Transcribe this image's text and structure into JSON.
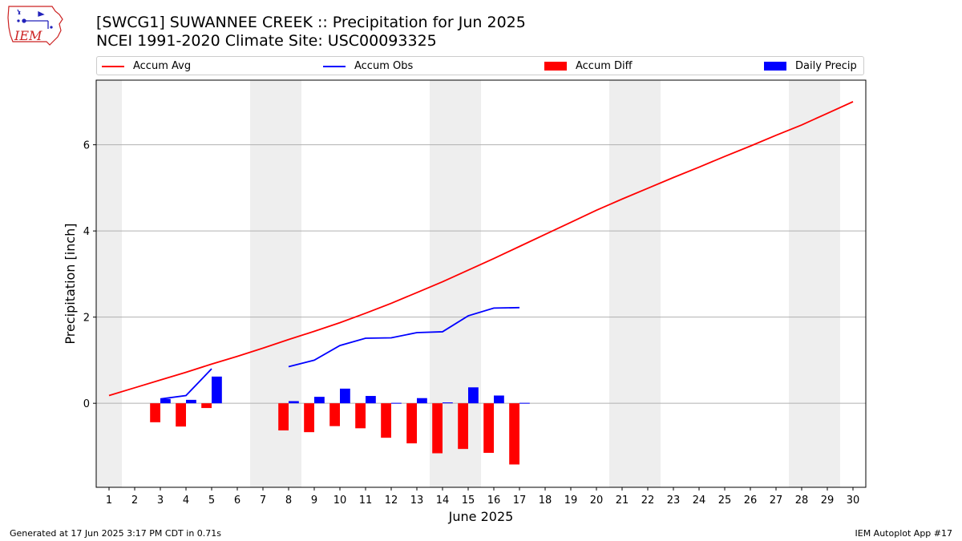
{
  "logo_text": "IEM",
  "title": "[SWCG1] SUWANNEE CREEK :: Precipitation for Jun 2025",
  "subtitle": "NCEI 1991-2020 Climate Site: USC00093325",
  "footer_left": "Generated at 17 Jun 2025 3:17 PM CDT in 0.71s",
  "footer_right": "IEM Autoplot App #17",
  "colors": {
    "accum_avg": "#ff0000",
    "accum_obs": "#0000ff",
    "accum_diff": "#ff0000",
    "daily_precip": "#0000ff",
    "weekend_shade": "#eeeeee",
    "grid": "#b0b0b0"
  },
  "chart_data": {
    "type": "bar",
    "xlabel": "June 2025",
    "ylabel": "Precipitation [inch]",
    "xlim": [
      0.5,
      30.5
    ],
    "ylim": [
      -1.95,
      7.5
    ],
    "yticks": [
      0,
      2,
      4,
      6
    ],
    "xticks": [
      1,
      2,
      3,
      4,
      5,
      6,
      7,
      8,
      9,
      10,
      11,
      12,
      13,
      14,
      15,
      16,
      17,
      18,
      19,
      20,
      21,
      22,
      23,
      24,
      25,
      26,
      27,
      28,
      29,
      30
    ],
    "grid": "horizontal",
    "legend_position": "top",
    "weekend_bands": [
      [
        0.5,
        1.5
      ],
      [
        6.5,
        8.5
      ],
      [
        13.5,
        15.5
      ],
      [
        20.5,
        22.5
      ],
      [
        27.5,
        29.5
      ]
    ],
    "series": [
      {
        "name": "Accum Avg",
        "type": "line",
        "x": [
          1,
          2,
          3,
          4,
          5,
          6,
          7,
          8,
          9,
          10,
          11,
          12,
          13,
          14,
          15,
          16,
          17,
          18,
          19,
          20,
          21,
          22,
          23,
          24,
          25,
          26,
          27,
          28,
          29,
          30
        ],
        "y": [
          0.18,
          0.36,
          0.54,
          0.72,
          0.91,
          1.09,
          1.28,
          1.48,
          1.67,
          1.87,
          2.09,
          2.32,
          2.57,
          2.82,
          3.09,
          3.36,
          3.64,
          3.92,
          4.2,
          4.48,
          4.74,
          4.99,
          5.24,
          5.48,
          5.73,
          5.97,
          6.22,
          6.46,
          6.73,
          7.0
        ]
      },
      {
        "name": "Accum Obs",
        "type": "line",
        "segments": [
          {
            "x": [
              3,
              4,
              5
            ],
            "y": [
              0.1,
              0.18,
              0.8
            ]
          },
          {
            "x": [
              8,
              9,
              10,
              11,
              12,
              13,
              14,
              15,
              16,
              17
            ],
            "y": [
              0.85,
              1.0,
              1.34,
              1.51,
              1.52,
              1.64,
              1.66,
              2.03,
              2.21,
              2.22
            ]
          }
        ]
      },
      {
        "name": "Accum Diff",
        "type": "bar",
        "x": [
          3,
          4,
          5,
          8,
          9,
          10,
          11,
          12,
          13,
          14,
          15,
          16,
          17
        ],
        "y": [
          -0.44,
          -0.54,
          -0.11,
          -0.63,
          -0.67,
          -0.53,
          -0.58,
          -0.8,
          -0.93,
          -1.16,
          -1.06,
          -1.15,
          -1.42
        ]
      },
      {
        "name": "Daily Precip",
        "type": "bar",
        "x": [
          3,
          4,
          5,
          8,
          9,
          10,
          11,
          12,
          13,
          14,
          15,
          16,
          17
        ],
        "y": [
          0.1,
          0.08,
          0.62,
          0.05,
          0.15,
          0.34,
          0.17,
          0.01,
          0.12,
          0.02,
          0.37,
          0.18,
          0.01
        ]
      }
    ]
  }
}
